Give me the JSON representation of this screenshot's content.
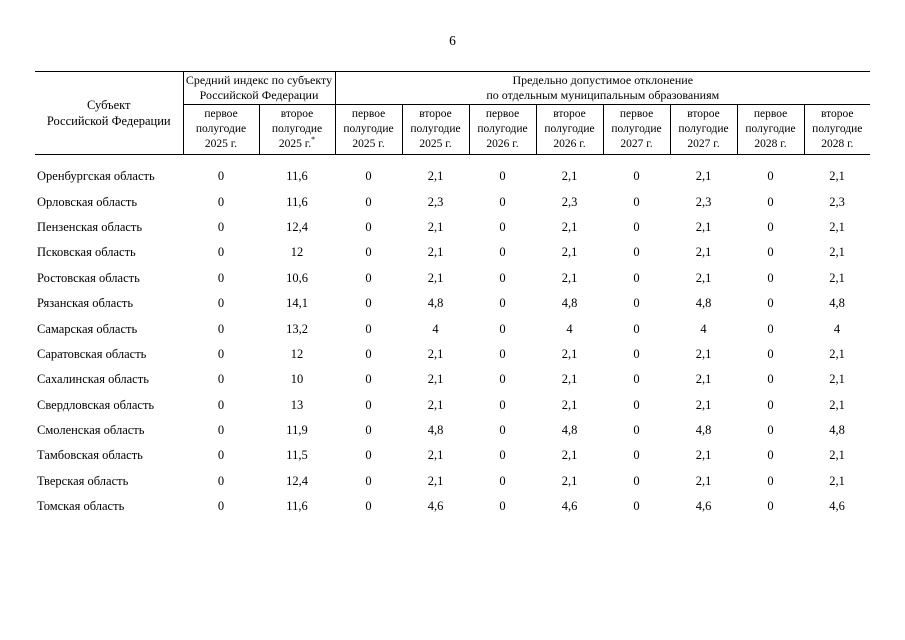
{
  "page": {
    "number": "6"
  },
  "colors": {
    "text": "#000000",
    "border": "#000000",
    "background": "#ffffff"
  },
  "table": {
    "header": {
      "subject": "Субъект\nРоссийской Федерации",
      "group_avg": "Средний индекс по субъекту\nРоссийской Федерации",
      "group_dev": "Предельно допустимое отклонение\nпо отдельным муниципальным образованиям",
      "periods": [
        {
          "label": "первое\nполугодие\n2025 г.",
          "sup": ""
        },
        {
          "label": "второе\nполугодие\n2025 г.",
          "sup": "*"
        },
        {
          "label": "первое\nполугодие\n2025 г.",
          "sup": ""
        },
        {
          "label": "второе\nполугодие\n2025 г.",
          "sup": ""
        },
        {
          "label": "первое\nполугодие\n2026 г.",
          "sup": ""
        },
        {
          "label": "второе\nполугодие\n2026 г.",
          "sup": ""
        },
        {
          "label": "первое\nполугодие\n2027 г.",
          "sup": ""
        },
        {
          "label": "второе\nполугодие\n2027 г.",
          "sup": ""
        },
        {
          "label": "первое\nполугодие\n2028 г.",
          "sup": ""
        },
        {
          "label": "второе\nполугодие\n2028 г.",
          "sup": ""
        }
      ]
    },
    "rows": [
      {
        "region": "Оренбургская область",
        "values": [
          "0",
          "11,6",
          "0",
          "2,1",
          "0",
          "2,1",
          "0",
          "2,1",
          "0",
          "2,1"
        ]
      },
      {
        "region": "Орловская область",
        "values": [
          "0",
          "11,6",
          "0",
          "2,3",
          "0",
          "2,3",
          "0",
          "2,3",
          "0",
          "2,3"
        ]
      },
      {
        "region": "Пензенская область",
        "values": [
          "0",
          "12,4",
          "0",
          "2,1",
          "0",
          "2,1",
          "0",
          "2,1",
          "0",
          "2,1"
        ]
      },
      {
        "region": "Псковская область",
        "values": [
          "0",
          "12",
          "0",
          "2,1",
          "0",
          "2,1",
          "0",
          "2,1",
          "0",
          "2,1"
        ]
      },
      {
        "region": "Ростовская область",
        "values": [
          "0",
          "10,6",
          "0",
          "2,1",
          "0",
          "2,1",
          "0",
          "2,1",
          "0",
          "2,1"
        ]
      },
      {
        "region": "Рязанская область",
        "values": [
          "0",
          "14,1",
          "0",
          "4,8",
          "0",
          "4,8",
          "0",
          "4,8",
          "0",
          "4,8"
        ]
      },
      {
        "region": "Самарская область",
        "values": [
          "0",
          "13,2",
          "0",
          "4",
          "0",
          "4",
          "0",
          "4",
          "0",
          "4"
        ]
      },
      {
        "region": "Саратовская область",
        "values": [
          "0",
          "12",
          "0",
          "2,1",
          "0",
          "2,1",
          "0",
          "2,1",
          "0",
          "2,1"
        ]
      },
      {
        "region": "Сахалинская область",
        "values": [
          "0",
          "10",
          "0",
          "2,1",
          "0",
          "2,1",
          "0",
          "2,1",
          "0",
          "2,1"
        ]
      },
      {
        "region": "Свердловская область",
        "values": [
          "0",
          "13",
          "0",
          "2,1",
          "0",
          "2,1",
          "0",
          "2,1",
          "0",
          "2,1"
        ]
      },
      {
        "region": "Смоленская область",
        "values": [
          "0",
          "11,9",
          "0",
          "4,8",
          "0",
          "4,8",
          "0",
          "4,8",
          "0",
          "4,8"
        ]
      },
      {
        "region": "Тамбовская область",
        "values": [
          "0",
          "11,5",
          "0",
          "2,1",
          "0",
          "2,1",
          "0",
          "2,1",
          "0",
          "2,1"
        ]
      },
      {
        "region": "Тверская область",
        "values": [
          "0",
          "12,4",
          "0",
          "2,1",
          "0",
          "2,1",
          "0",
          "2,1",
          "0",
          "2,1"
        ]
      },
      {
        "region": "Томская область",
        "values": [
          "0",
          "11,6",
          "0",
          "4,6",
          "0",
          "4,6",
          "0",
          "4,6",
          "0",
          "4,6"
        ]
      }
    ]
  }
}
